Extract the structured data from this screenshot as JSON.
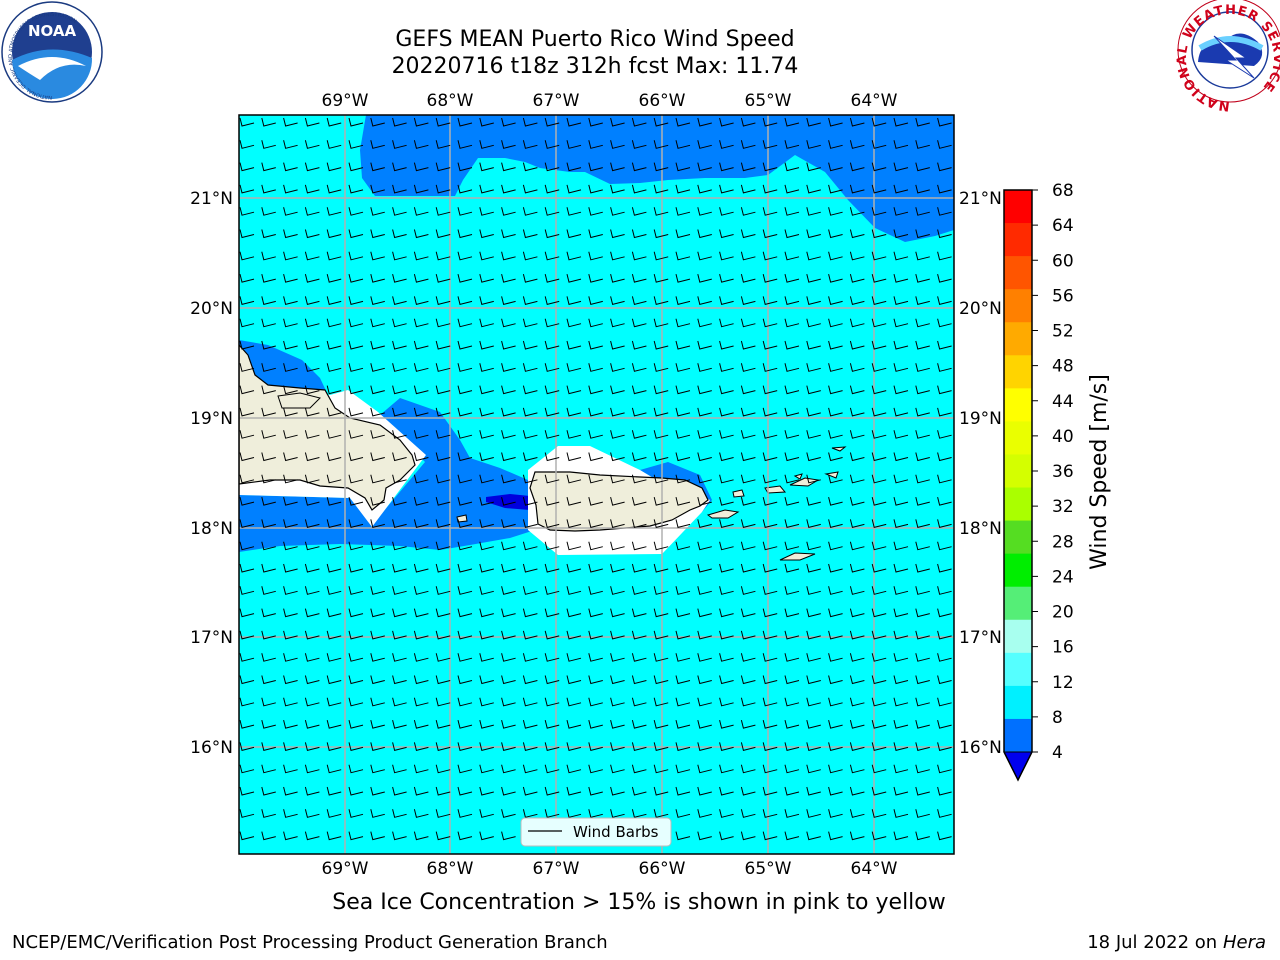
{
  "title_line1": "GEFS MEAN Puerto Rico Wind Speed",
  "title_line2": "20220716 t18z 312h fcst   Max: 11.74",
  "lon_ticks": [
    "69°W",
    "68°W",
    "67°W",
    "66°W",
    "65°W",
    "64°W"
  ],
  "lat_ticks": [
    "21°N",
    "20°N",
    "19°N",
    "18°N",
    "17°N",
    "16°N"
  ],
  "legend_label": "Wind Barbs",
  "colorbar": {
    "label": "Wind Speed [m/s]",
    "ticks": [
      "68",
      "64",
      "60",
      "56",
      "52",
      "48",
      "44",
      "40",
      "36",
      "32",
      "28",
      "24",
      "20",
      "16",
      "12",
      "8",
      "4"
    ],
    "colors": [
      "#ff0000",
      "#ff2a00",
      "#ff5500",
      "#ff8000",
      "#ffaa00",
      "#ffd400",
      "#ffff00",
      "#eaff00",
      "#d4ff00",
      "#aaff00",
      "#55dd22",
      "#00ee00",
      "#55ee77",
      "#a8ffef",
      "#55ffff",
      "#00f0ff",
      "#0070ff"
    ],
    "extend_color": "#0000ee"
  },
  "caption": "Sea Ice Concentration > 15% is shown in pink to yellow",
  "footer_left": "NCEP/EMC/Verification Post Processing Product Generation Branch",
  "footer_right_prefix": "18 Jul 2022 on ",
  "footer_right_host": "Hera",
  "logos": {
    "left": {
      "name": "NOAA",
      "text": "NOAA",
      "ring_text": "NATIONAL OCEANIC AND ATMOSPHERIC ADMINISTRATION"
    },
    "right": {
      "name": "National Weather Service",
      "ring_text": "NATIONAL WEATHER SERVICE"
    }
  }
}
